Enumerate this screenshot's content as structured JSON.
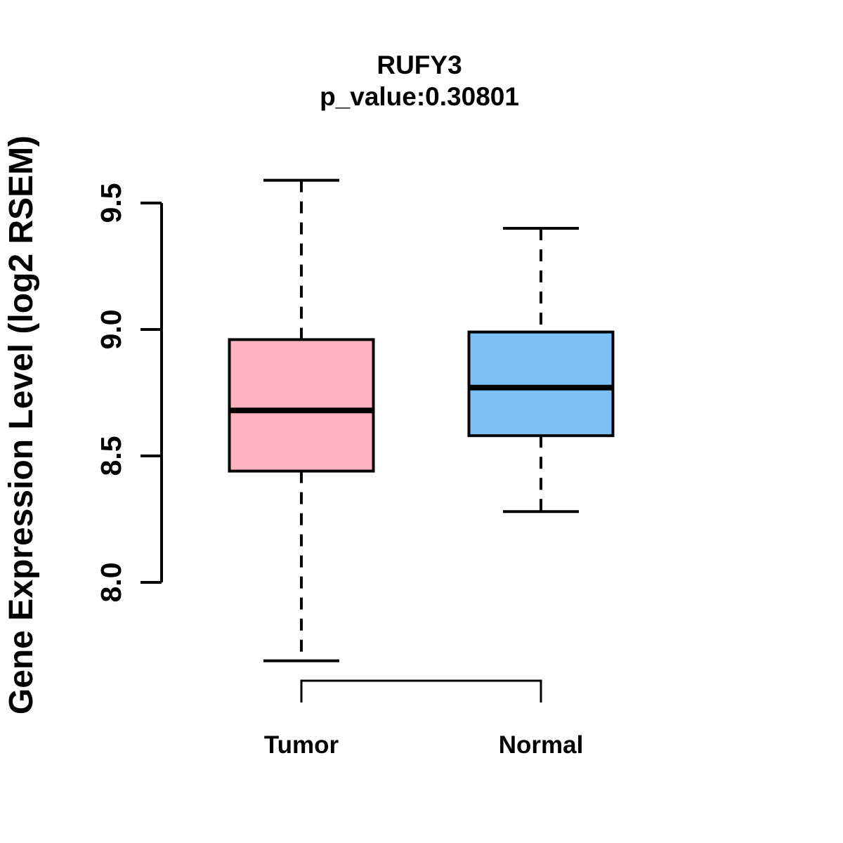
{
  "page": {
    "background": "#FFFFFF",
    "text_color": "#000000"
  },
  "chart_data": {
    "type": "boxplot",
    "title": "RUFY3",
    "subtitle": "p_value:0.30801",
    "gene": "RUFY3",
    "p_value": 0.30801,
    "xlabel": "",
    "ylabel": "Gene Expression Level (log2 RSEM)",
    "categories": [
      "Tumor",
      "Normal"
    ],
    "yticks": [
      "8.0",
      "8.5",
      "9.0",
      "9.5"
    ],
    "ylim": [
      7.5,
      9.7
    ],
    "grid": false,
    "legend": "none",
    "series": [
      {
        "name": "Tumor",
        "box_color": "#FFB3C1",
        "border_color": "#000000",
        "lower_whisker": 7.69,
        "q1": 8.44,
        "median": 8.68,
        "q3": 8.96,
        "upper_whisker": 9.59
      },
      {
        "name": "Normal",
        "box_color": "#7CC0F5",
        "border_color": "#000000",
        "lower_whisker": 8.28,
        "q1": 8.58,
        "median": 8.77,
        "q3": 8.99,
        "upper_whisker": 9.4
      }
    ],
    "annotations": {
      "comparison_bracket": [
        "Tumor",
        "Normal"
      ]
    }
  }
}
